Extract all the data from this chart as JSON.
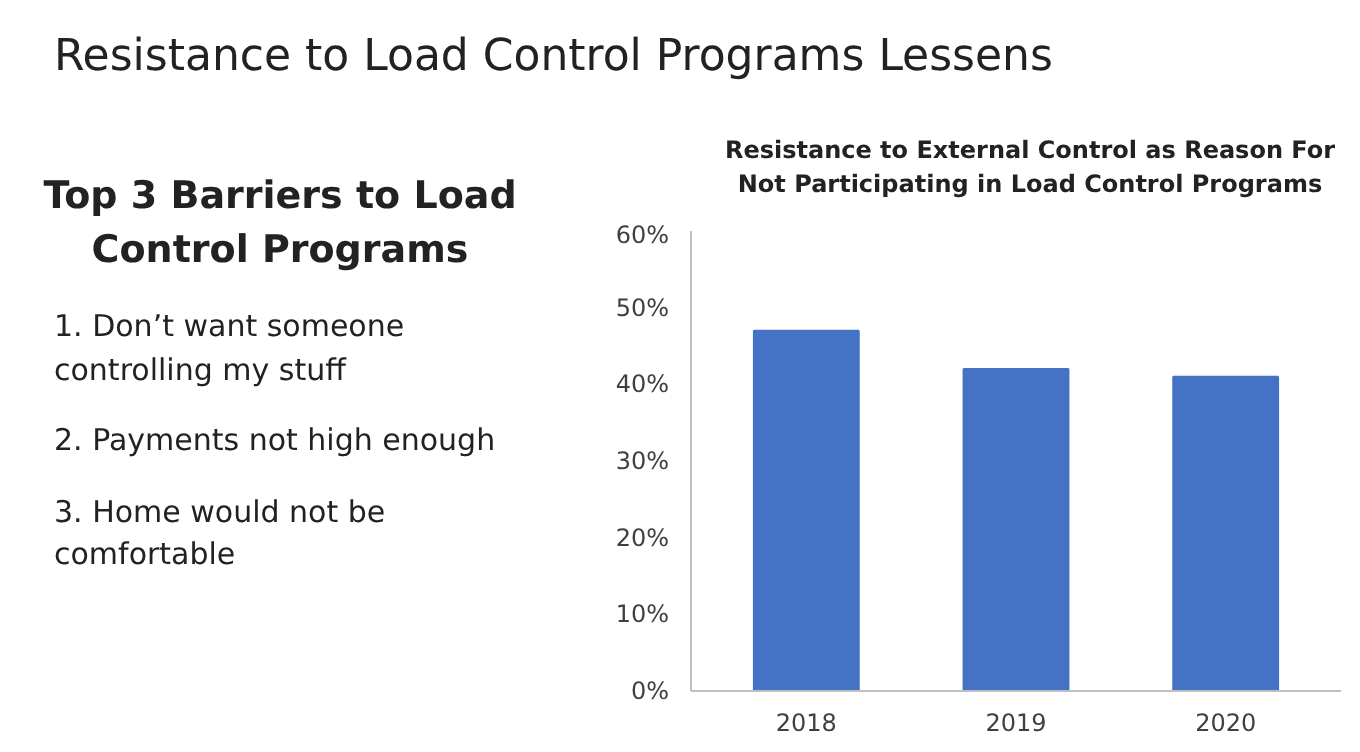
{
  "chart_data": {
    "type": "bar",
    "title": "Resistance to Load Control Programs Lessens",
    "subtitle": "Resistance to External Control as Reason For Not Participating in Load Control Programs",
    "annotations": [
      "Top 3 Barriers to Load Control Programs",
      "1. Don’t want someone controlling my stuff",
      "2. Payments not high enough",
      "3. Home would not be comfortable"
    ],
    "categories": [
      "2018",
      "2019",
      "2020"
    ],
    "values": [
      47,
      42,
      41
    ],
    "color": "#4472c4",
    "ylim": [
      0,
      60
    ],
    "yticks": [
      {
        "value": 0,
        "label": "0%"
      },
      {
        "value": 10,
        "label": "10%"
      },
      {
        "value": 20,
        "label": "20%"
      },
      {
        "value": 30,
        "label": "30%"
      },
      {
        "value": 40,
        "label": "40%"
      },
      {
        "value": 50,
        "label": "50%"
      },
      {
        "value": 60,
        "label": "60%"
      }
    ],
    "grid": false
  }
}
